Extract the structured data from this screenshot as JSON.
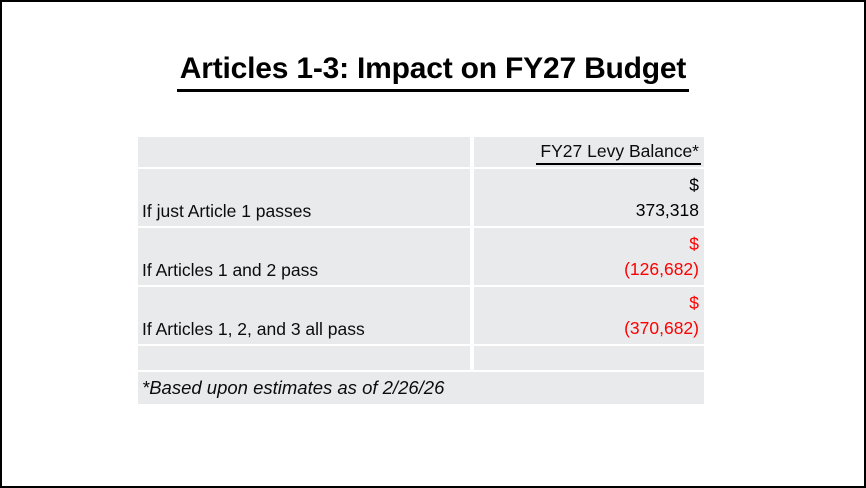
{
  "slide": {
    "title": "Articles 1-3: Impact on FY27 Budget",
    "table": {
      "column_header": "FY27 Levy Balance*",
      "rows": [
        {
          "label": "If just Article 1 passes",
          "currency": "$",
          "amount": "373,318"
        },
        {
          "label": "If Articles 1 and 2 pass",
          "currency": "$",
          "amount": "(126,682)"
        },
        {
          "label": "If Articles 1, 2, and 3 all pass",
          "currency": "$",
          "amount": "(370,682)"
        }
      ],
      "footnote": "*Based upon estimates as of 2/26/26"
    }
  },
  "colors": {
    "slide_border": "#000000",
    "title_text": "#000000",
    "table_cell_background": "#e9eaec",
    "positive_amount_text": "#000000",
    "negative_amount_text": "#fe0000"
  }
}
